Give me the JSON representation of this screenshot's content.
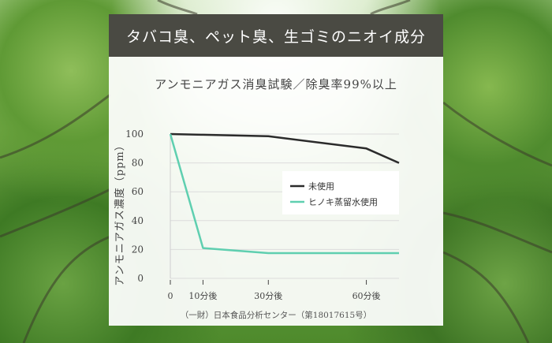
{
  "banner": {
    "title": "タバコ臭、ペット臭、生ゴミのニオイ成分"
  },
  "source_note": "（一財）日本食品分析センター（第18017615号）",
  "colors": {
    "banner_bg": "#4a4a43",
    "unused_line": "#2b2b2b",
    "hinoki_line": "#5fcfb0"
  },
  "chart_data": {
    "type": "line",
    "title": "アンモニアガス消臭試験／除臭率99%以上",
    "xlabel": "",
    "ylabel": "アンモニアガス濃度（ppm）",
    "categories": [
      "0",
      "10分後",
      "30分後",
      "60分後"
    ],
    "x": [
      0,
      10,
      30,
      60
    ],
    "x_end": 70,
    "ylim": [
      0,
      100
    ],
    "yticks": [
      0,
      20,
      40,
      60,
      80,
      100
    ],
    "grid": "horizontal",
    "legend_position": "inside-right",
    "series": [
      {
        "name": "未使用",
        "x": [
          0,
          10,
          30,
          60,
          70
        ],
        "y": [
          100,
          99.5,
          98.5,
          90,
          80
        ]
      },
      {
        "name": "ヒノキ蒸留水使用",
        "x": [
          0,
          10,
          30,
          60,
          70
        ],
        "y": [
          100,
          21,
          17.5,
          17.5,
          17.5
        ]
      }
    ]
  }
}
